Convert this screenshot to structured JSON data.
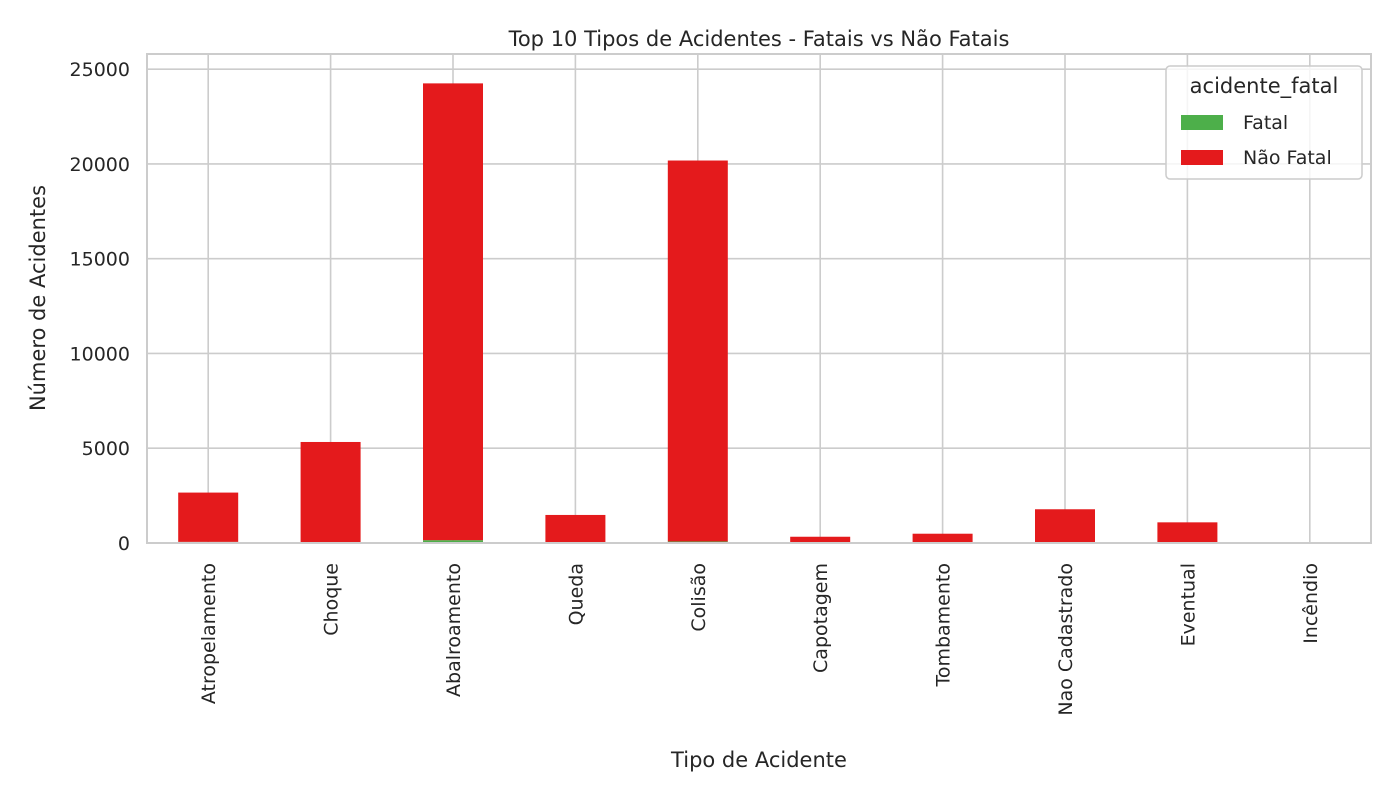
{
  "chart_data": {
    "type": "bar",
    "stacked": true,
    "title": "Top 10 Tipos de Acidentes - Fatais vs Não Fatais",
    "xlabel": "Tipo de Acidente",
    "ylabel": "Número de Acidentes",
    "ylim": [
      0,
      25800
    ],
    "yticks": [
      0,
      5000,
      10000,
      15000,
      20000,
      25000
    ],
    "grid": true,
    "legend": {
      "title": "acidente_fatal",
      "position": "top-right"
    },
    "categories": [
      "Atropelamento",
      "Choque",
      "Abalroamento",
      "Queda",
      "Colisão",
      "Capotagem",
      "Tombamento",
      "Nao Cadastrado",
      "Eventual",
      "Incêndio"
    ],
    "series": [
      {
        "name": "Fatal",
        "color": "#4daf4a",
        "values": [
          60,
          30,
          150,
          30,
          80,
          10,
          20,
          30,
          10,
          5
        ]
      },
      {
        "name": "Não Fatal",
        "color": "#e41a1c",
        "values": [
          2600,
          5300,
          24100,
          1450,
          20100,
          320,
          470,
          1750,
          1080,
          30
        ]
      }
    ]
  }
}
